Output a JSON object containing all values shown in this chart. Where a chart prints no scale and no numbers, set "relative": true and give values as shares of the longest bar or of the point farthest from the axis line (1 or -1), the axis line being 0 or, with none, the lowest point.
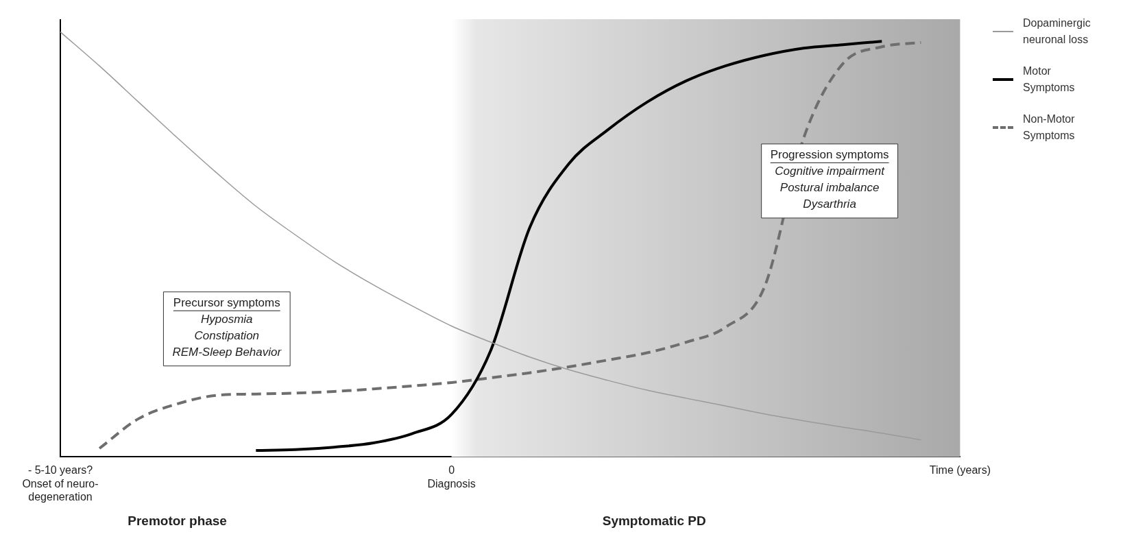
{
  "chart_data": {
    "type": "line",
    "relative": true,
    "categories": [
      "- 5-10 years?\nOnset of neuro-\ndegeneration",
      null,
      null,
      null,
      null,
      null,
      null,
      null,
      null,
      null,
      "0\nDiagnosis",
      null,
      null,
      null,
      null,
      null,
      null,
      null,
      null,
      null,
      null,
      null,
      null,
      "Time (years)"
    ],
    "legend": "right",
    "grid": false,
    "marker": "none",
    "bands": [
      {
        "axis": "x",
        "from": "0\nDiagnosis",
        "to": "Time (years)",
        "color": "#a9a9a9"
      }
    ],
    "annotations": [
      "Precursor symptoms\nHyposmia\nConstipation\nREM-Sleep Behavior",
      "Progression symptoms\nCognitive impairment\nPostural imbalance\nDysarthria",
      "Premotor phase",
      "Symptomatic PD"
    ],
    "series": [
      {
        "name": "Dopaminergic neuronal loss",
        "color": "#9a9a9a",
        "line_style": "solid",
        "values": [
          1.0,
          0.92,
          0.835,
          0.75,
          0.668,
          0.59,
          0.523,
          0.46,
          0.405,
          0.355,
          0.308,
          0.27,
          0.235,
          0.205,
          0.18,
          0.157,
          0.138,
          0.12,
          0.101,
          0.085,
          0.07,
          0.056,
          0.04,
          null
        ]
      },
      {
        "name": "Motor Symptoms",
        "color": "#000000",
        "line_style": "solid",
        "values": [
          null,
          null,
          null,
          null,
          null,
          0.015,
          0.017,
          0.023,
          0.033,
          0.055,
          0.1,
          0.25,
          0.54,
          0.69,
          0.77,
          0.835,
          0.885,
          0.92,
          0.945,
          0.962,
          0.97,
          0.978,
          null,
          null
        ]
      },
      {
        "name": "Non-Motor Symptoms",
        "color": "#6e6e6e",
        "line_style": "dashed",
        "values": [
          null,
          0.02,
          0.09,
          0.125,
          0.145,
          0.148,
          0.15,
          0.154,
          0.16,
          0.167,
          0.175,
          0.186,
          0.198,
          0.212,
          0.228,
          0.245,
          0.27,
          0.305,
          0.4,
          0.75,
          0.925,
          0.965,
          0.975,
          null
        ]
      }
    ]
  }
}
